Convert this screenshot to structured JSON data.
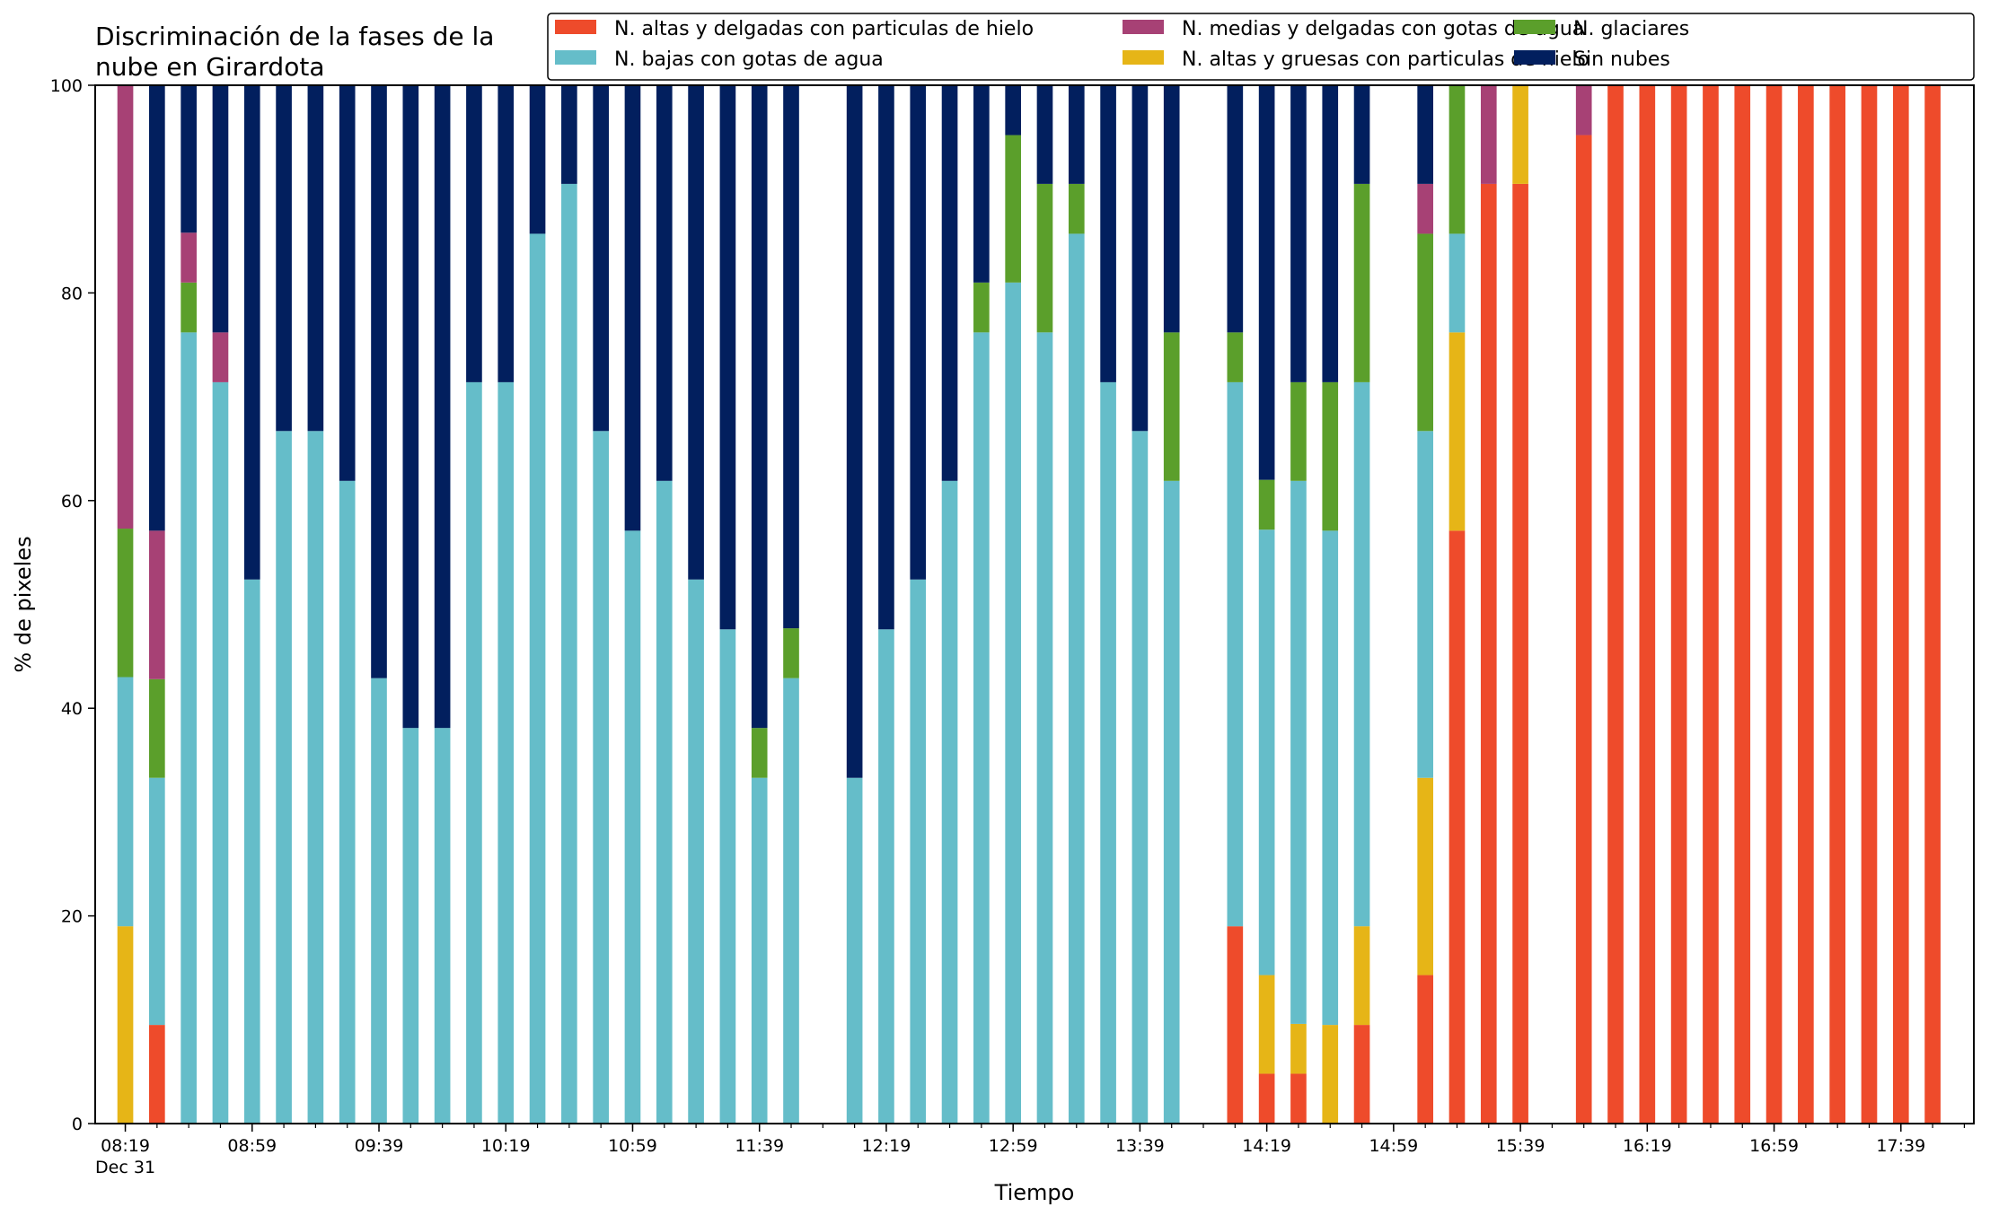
{
  "chart_data": {
    "type": "bar",
    "stacked": true,
    "title_lines": [
      "Discriminación de la fases de la",
      "nube en Girardota"
    ],
    "xlabel": "Tiempo",
    "ylabel": "% de pixeles",
    "ylim": [
      0,
      100
    ],
    "yticks": [
      0,
      20,
      40,
      60,
      80,
      100
    ],
    "grid": false,
    "legend_position": "top-right",
    "x_start_minutes": 499,
    "x_end_minutes": 1080,
    "x_step_minutes": 10,
    "xtick_labels": [
      {
        "t": 499,
        "label": "08:19",
        "sublabel": "Dec 31"
      },
      {
        "t": 539,
        "label": "08:59"
      },
      {
        "t": 579,
        "label": "09:39"
      },
      {
        "t": 619,
        "label": "10:19"
      },
      {
        "t": 659,
        "label": "10:59"
      },
      {
        "t": 699,
        "label": "11:39"
      },
      {
        "t": 739,
        "label": "12:19"
      },
      {
        "t": 779,
        "label": "12:59"
      },
      {
        "t": 819,
        "label": "13:39"
      },
      {
        "t": 859,
        "label": "14:19"
      },
      {
        "t": 899,
        "label": "14:59"
      },
      {
        "t": 939,
        "label": "15:39"
      },
      {
        "t": 979,
        "label": "16:19"
      },
      {
        "t": 1019,
        "label": "16:59"
      },
      {
        "t": 1059,
        "label": "17:39"
      }
    ],
    "series": [
      {
        "key": "altas_delgadas",
        "name": "N. altas y delgadas con particulas de hielo",
        "color": "#EE4B2B"
      },
      {
        "key": "altas_gruesas",
        "name": "N. altas y gruesas con particulas de hielo",
        "color": "#E6B517"
      },
      {
        "key": "bajas",
        "name": "N. bajas con gotas de agua",
        "color": "#65BDC9"
      },
      {
        "key": "glaciares",
        "name": "N. glaciares",
        "color": "#5B9F2B"
      },
      {
        "key": "medias",
        "name": "N. medias y delgadas con gotas de agua",
        "color": "#A74175"
      },
      {
        "key": "sin_nubes",
        "name": "Sin nubes",
        "color": "#021F5E"
      }
    ],
    "stack_order": [
      "altas_delgadas",
      "altas_gruesas",
      "bajas",
      "glaciares",
      "medias",
      "sin_nubes"
    ],
    "legend_order": [
      "altas_delgadas",
      "bajas",
      "medias",
      "altas_gruesas",
      "glaciares",
      "sin_nubes"
    ],
    "bars": [
      {
        "t": 499,
        "altas_delgadas": 0,
        "altas_gruesas": 19,
        "bajas": 24,
        "glaciares": 14.3,
        "medias": 42.7,
        "sin_nubes": 0
      },
      {
        "t": 509,
        "altas_delgadas": 9.5,
        "altas_gruesas": 0,
        "bajas": 23.8,
        "glaciares": 9.5,
        "medias": 14.3,
        "sin_nubes": 42.9
      },
      {
        "t": 519,
        "altas_delgadas": 0,
        "altas_gruesas": 0,
        "bajas": 76.2,
        "glaciares": 4.8,
        "medias": 4.8,
        "sin_nubes": 14.2
      },
      {
        "t": 529,
        "altas_delgadas": 0,
        "altas_gruesas": 0,
        "bajas": 71.4,
        "glaciares": 0,
        "medias": 4.8,
        "sin_nubes": 23.8
      },
      {
        "t": 539,
        "altas_delgadas": 0,
        "altas_gruesas": 0,
        "bajas": 52.4,
        "glaciares": 0,
        "medias": 0,
        "sin_nubes": 47.6
      },
      {
        "t": 549,
        "altas_delgadas": 0,
        "altas_gruesas": 0,
        "bajas": 66.7,
        "glaciares": 0,
        "medias": 0,
        "sin_nubes": 33.3
      },
      {
        "t": 559,
        "altas_delgadas": 0,
        "altas_gruesas": 0,
        "bajas": 66.7,
        "glaciares": 0,
        "medias": 0,
        "sin_nubes": 33.3
      },
      {
        "t": 569,
        "altas_delgadas": 0,
        "altas_gruesas": 0,
        "bajas": 61.9,
        "glaciares": 0,
        "medias": 0,
        "sin_nubes": 38.1
      },
      {
        "t": 579,
        "altas_delgadas": 0,
        "altas_gruesas": 0,
        "bajas": 42.9,
        "glaciares": 0,
        "medias": 0,
        "sin_nubes": 57.1
      },
      {
        "t": 589,
        "altas_delgadas": 0,
        "altas_gruesas": 0,
        "bajas": 38.1,
        "glaciares": 0,
        "medias": 0,
        "sin_nubes": 61.9
      },
      {
        "t": 599,
        "altas_delgadas": 0,
        "altas_gruesas": 0,
        "bajas": 38.1,
        "glaciares": 0,
        "medias": 0,
        "sin_nubes": 61.9
      },
      {
        "t": 609,
        "altas_delgadas": 0,
        "altas_gruesas": 0,
        "bajas": 71.4,
        "glaciares": 0,
        "medias": 0,
        "sin_nubes": 28.6
      },
      {
        "t": 619,
        "altas_delgadas": 0,
        "altas_gruesas": 0,
        "bajas": 71.4,
        "glaciares": 0,
        "medias": 0,
        "sin_nubes": 28.6
      },
      {
        "t": 629,
        "altas_delgadas": 0,
        "altas_gruesas": 0,
        "bajas": 85.7,
        "glaciares": 0,
        "medias": 0,
        "sin_nubes": 14.3
      },
      {
        "t": 639,
        "altas_delgadas": 0,
        "altas_gruesas": 0,
        "bajas": 90.5,
        "glaciares": 0,
        "medias": 0,
        "sin_nubes": 9.5
      },
      {
        "t": 649,
        "altas_delgadas": 0,
        "altas_gruesas": 0,
        "bajas": 66.7,
        "glaciares": 0,
        "medias": 0,
        "sin_nubes": 33.3
      },
      {
        "t": 659,
        "altas_delgadas": 0,
        "altas_gruesas": 0,
        "bajas": 57.1,
        "glaciares": 0,
        "medias": 0,
        "sin_nubes": 42.9
      },
      {
        "t": 669,
        "altas_delgadas": 0,
        "altas_gruesas": 0,
        "bajas": 61.9,
        "glaciares": 0,
        "medias": 0,
        "sin_nubes": 38.1
      },
      {
        "t": 679,
        "altas_delgadas": 0,
        "altas_gruesas": 0,
        "bajas": 52.4,
        "glaciares": 0,
        "medias": 0,
        "sin_nubes": 47.6
      },
      {
        "t": 689,
        "altas_delgadas": 0,
        "altas_gruesas": 0,
        "bajas": 47.6,
        "glaciares": 0,
        "medias": 0,
        "sin_nubes": 52.4
      },
      {
        "t": 699,
        "altas_delgadas": 0,
        "altas_gruesas": 0,
        "bajas": 33.3,
        "glaciares": 4.8,
        "medias": 0,
        "sin_nubes": 61.9
      },
      {
        "t": 709,
        "altas_delgadas": 0,
        "altas_gruesas": 0,
        "bajas": 42.9,
        "glaciares": 4.8,
        "medias": 0,
        "sin_nubes": 52.3
      },
      {
        "t": 729,
        "altas_delgadas": 0,
        "altas_gruesas": 0,
        "bajas": 33.3,
        "glaciares": 0,
        "medias": 0,
        "sin_nubes": 66.7
      },
      {
        "t": 739,
        "altas_delgadas": 0,
        "altas_gruesas": 0,
        "bajas": 47.6,
        "glaciares": 0,
        "medias": 0,
        "sin_nubes": 52.4
      },
      {
        "t": 749,
        "altas_delgadas": 0,
        "altas_gruesas": 0,
        "bajas": 52.4,
        "glaciares": 0,
        "medias": 0,
        "sin_nubes": 47.6
      },
      {
        "t": 759,
        "altas_delgadas": 0,
        "altas_gruesas": 0,
        "bajas": 61.9,
        "glaciares": 0,
        "medias": 0,
        "sin_nubes": 38.1
      },
      {
        "t": 769,
        "altas_delgadas": 0,
        "altas_gruesas": 0,
        "bajas": 76.2,
        "glaciares": 4.8,
        "medias": 0,
        "sin_nubes": 19
      },
      {
        "t": 779,
        "altas_delgadas": 0,
        "altas_gruesas": 0,
        "bajas": 81,
        "glaciares": 14.2,
        "medias": 0,
        "sin_nubes": 4.8
      },
      {
        "t": 789,
        "altas_delgadas": 0,
        "altas_gruesas": 0,
        "bajas": 76.2,
        "glaciares": 14.3,
        "medias": 0,
        "sin_nubes": 9.5
      },
      {
        "t": 799,
        "altas_delgadas": 0,
        "altas_gruesas": 0,
        "bajas": 85.7,
        "glaciares": 4.8,
        "medias": 0,
        "sin_nubes": 9.5
      },
      {
        "t": 809,
        "altas_delgadas": 0,
        "altas_gruesas": 0,
        "bajas": 71.4,
        "glaciares": 0,
        "medias": 0,
        "sin_nubes": 28.6
      },
      {
        "t": 819,
        "altas_delgadas": 0,
        "altas_gruesas": 0,
        "bajas": 66.7,
        "glaciares": 0,
        "medias": 0,
        "sin_nubes": 33.3
      },
      {
        "t": 829,
        "altas_delgadas": 0,
        "altas_gruesas": 0,
        "bajas": 61.9,
        "glaciares": 14.3,
        "medias": 0,
        "sin_nubes": 23.8
      },
      {
        "t": 849,
        "altas_delgadas": 19,
        "altas_gruesas": 0,
        "bajas": 52.4,
        "glaciares": 4.8,
        "medias": 0,
        "sin_nubes": 23.8
      },
      {
        "t": 859,
        "altas_delgadas": 4.8,
        "altas_gruesas": 9.5,
        "bajas": 42.9,
        "glaciares": 4.8,
        "medias": 0,
        "sin_nubes": 38
      },
      {
        "t": 869,
        "altas_delgadas": 4.8,
        "altas_gruesas": 4.8,
        "bajas": 52.3,
        "glaciares": 9.5,
        "medias": 0,
        "sin_nubes": 28.6
      },
      {
        "t": 879,
        "altas_delgadas": 0,
        "altas_gruesas": 9.5,
        "bajas": 47.6,
        "glaciares": 14.3,
        "medias": 0,
        "sin_nubes": 28.6
      },
      {
        "t": 889,
        "altas_delgadas": 9.5,
        "altas_gruesas": 9.5,
        "bajas": 52.4,
        "glaciares": 19.1,
        "medias": 0,
        "sin_nubes": 9.5
      },
      {
        "t": 909,
        "altas_delgadas": 14.3,
        "altas_gruesas": 19,
        "bajas": 33.4,
        "glaciares": 19,
        "medias": 4.8,
        "sin_nubes": 9.5
      },
      {
        "t": 919,
        "altas_delgadas": 57.1,
        "altas_gruesas": 19.1,
        "bajas": 9.5,
        "glaciares": 14.3,
        "medias": 0,
        "sin_nubes": 0
      },
      {
        "t": 929,
        "altas_delgadas": 90.5,
        "altas_gruesas": 0,
        "bajas": 0,
        "glaciares": 0,
        "medias": 9.5,
        "sin_nubes": 0
      },
      {
        "t": 939,
        "altas_delgadas": 90.5,
        "altas_gruesas": 9.5,
        "bajas": 0,
        "glaciares": 0,
        "medias": 0,
        "sin_nubes": 0
      },
      {
        "t": 959,
        "altas_delgadas": 95.2,
        "altas_gruesas": 0,
        "bajas": 0,
        "glaciares": 0,
        "medias": 4.8,
        "sin_nubes": 0
      },
      {
        "t": 969,
        "altas_delgadas": 100,
        "altas_gruesas": 0,
        "bajas": 0,
        "glaciares": 0,
        "medias": 0,
        "sin_nubes": 0
      },
      {
        "t": 979,
        "altas_delgadas": 100,
        "altas_gruesas": 0,
        "bajas": 0,
        "glaciares": 0,
        "medias": 0,
        "sin_nubes": 0
      },
      {
        "t": 989,
        "altas_delgadas": 100,
        "altas_gruesas": 0,
        "bajas": 0,
        "glaciares": 0,
        "medias": 0,
        "sin_nubes": 0
      },
      {
        "t": 999,
        "altas_delgadas": 100,
        "altas_gruesas": 0,
        "bajas": 0,
        "glaciares": 0,
        "medias": 0,
        "sin_nubes": 0
      },
      {
        "t": 1009,
        "altas_delgadas": 100,
        "altas_gruesas": 0,
        "bajas": 0,
        "glaciares": 0,
        "medias": 0,
        "sin_nubes": 0
      },
      {
        "t": 1019,
        "altas_delgadas": 100,
        "altas_gruesas": 0,
        "bajas": 0,
        "glaciares": 0,
        "medias": 0,
        "sin_nubes": 0
      },
      {
        "t": 1029,
        "altas_delgadas": 100,
        "altas_gruesas": 0,
        "bajas": 0,
        "glaciares": 0,
        "medias": 0,
        "sin_nubes": 0
      },
      {
        "t": 1039,
        "altas_delgadas": 100,
        "altas_gruesas": 0,
        "bajas": 0,
        "glaciares": 0,
        "medias": 0,
        "sin_nubes": 0
      },
      {
        "t": 1049,
        "altas_delgadas": 100,
        "altas_gruesas": 0,
        "bajas": 0,
        "glaciares": 0,
        "medias": 0,
        "sin_nubes": 0
      },
      {
        "t": 1059,
        "altas_delgadas": 100,
        "altas_gruesas": 0,
        "bajas": 0,
        "glaciares": 0,
        "medias": 0,
        "sin_nubes": 0
      },
      {
        "t": 1069,
        "altas_delgadas": 100,
        "altas_gruesas": 0,
        "bajas": 0,
        "glaciares": 0,
        "medias": 0,
        "sin_nubes": 0
      }
    ]
  }
}
